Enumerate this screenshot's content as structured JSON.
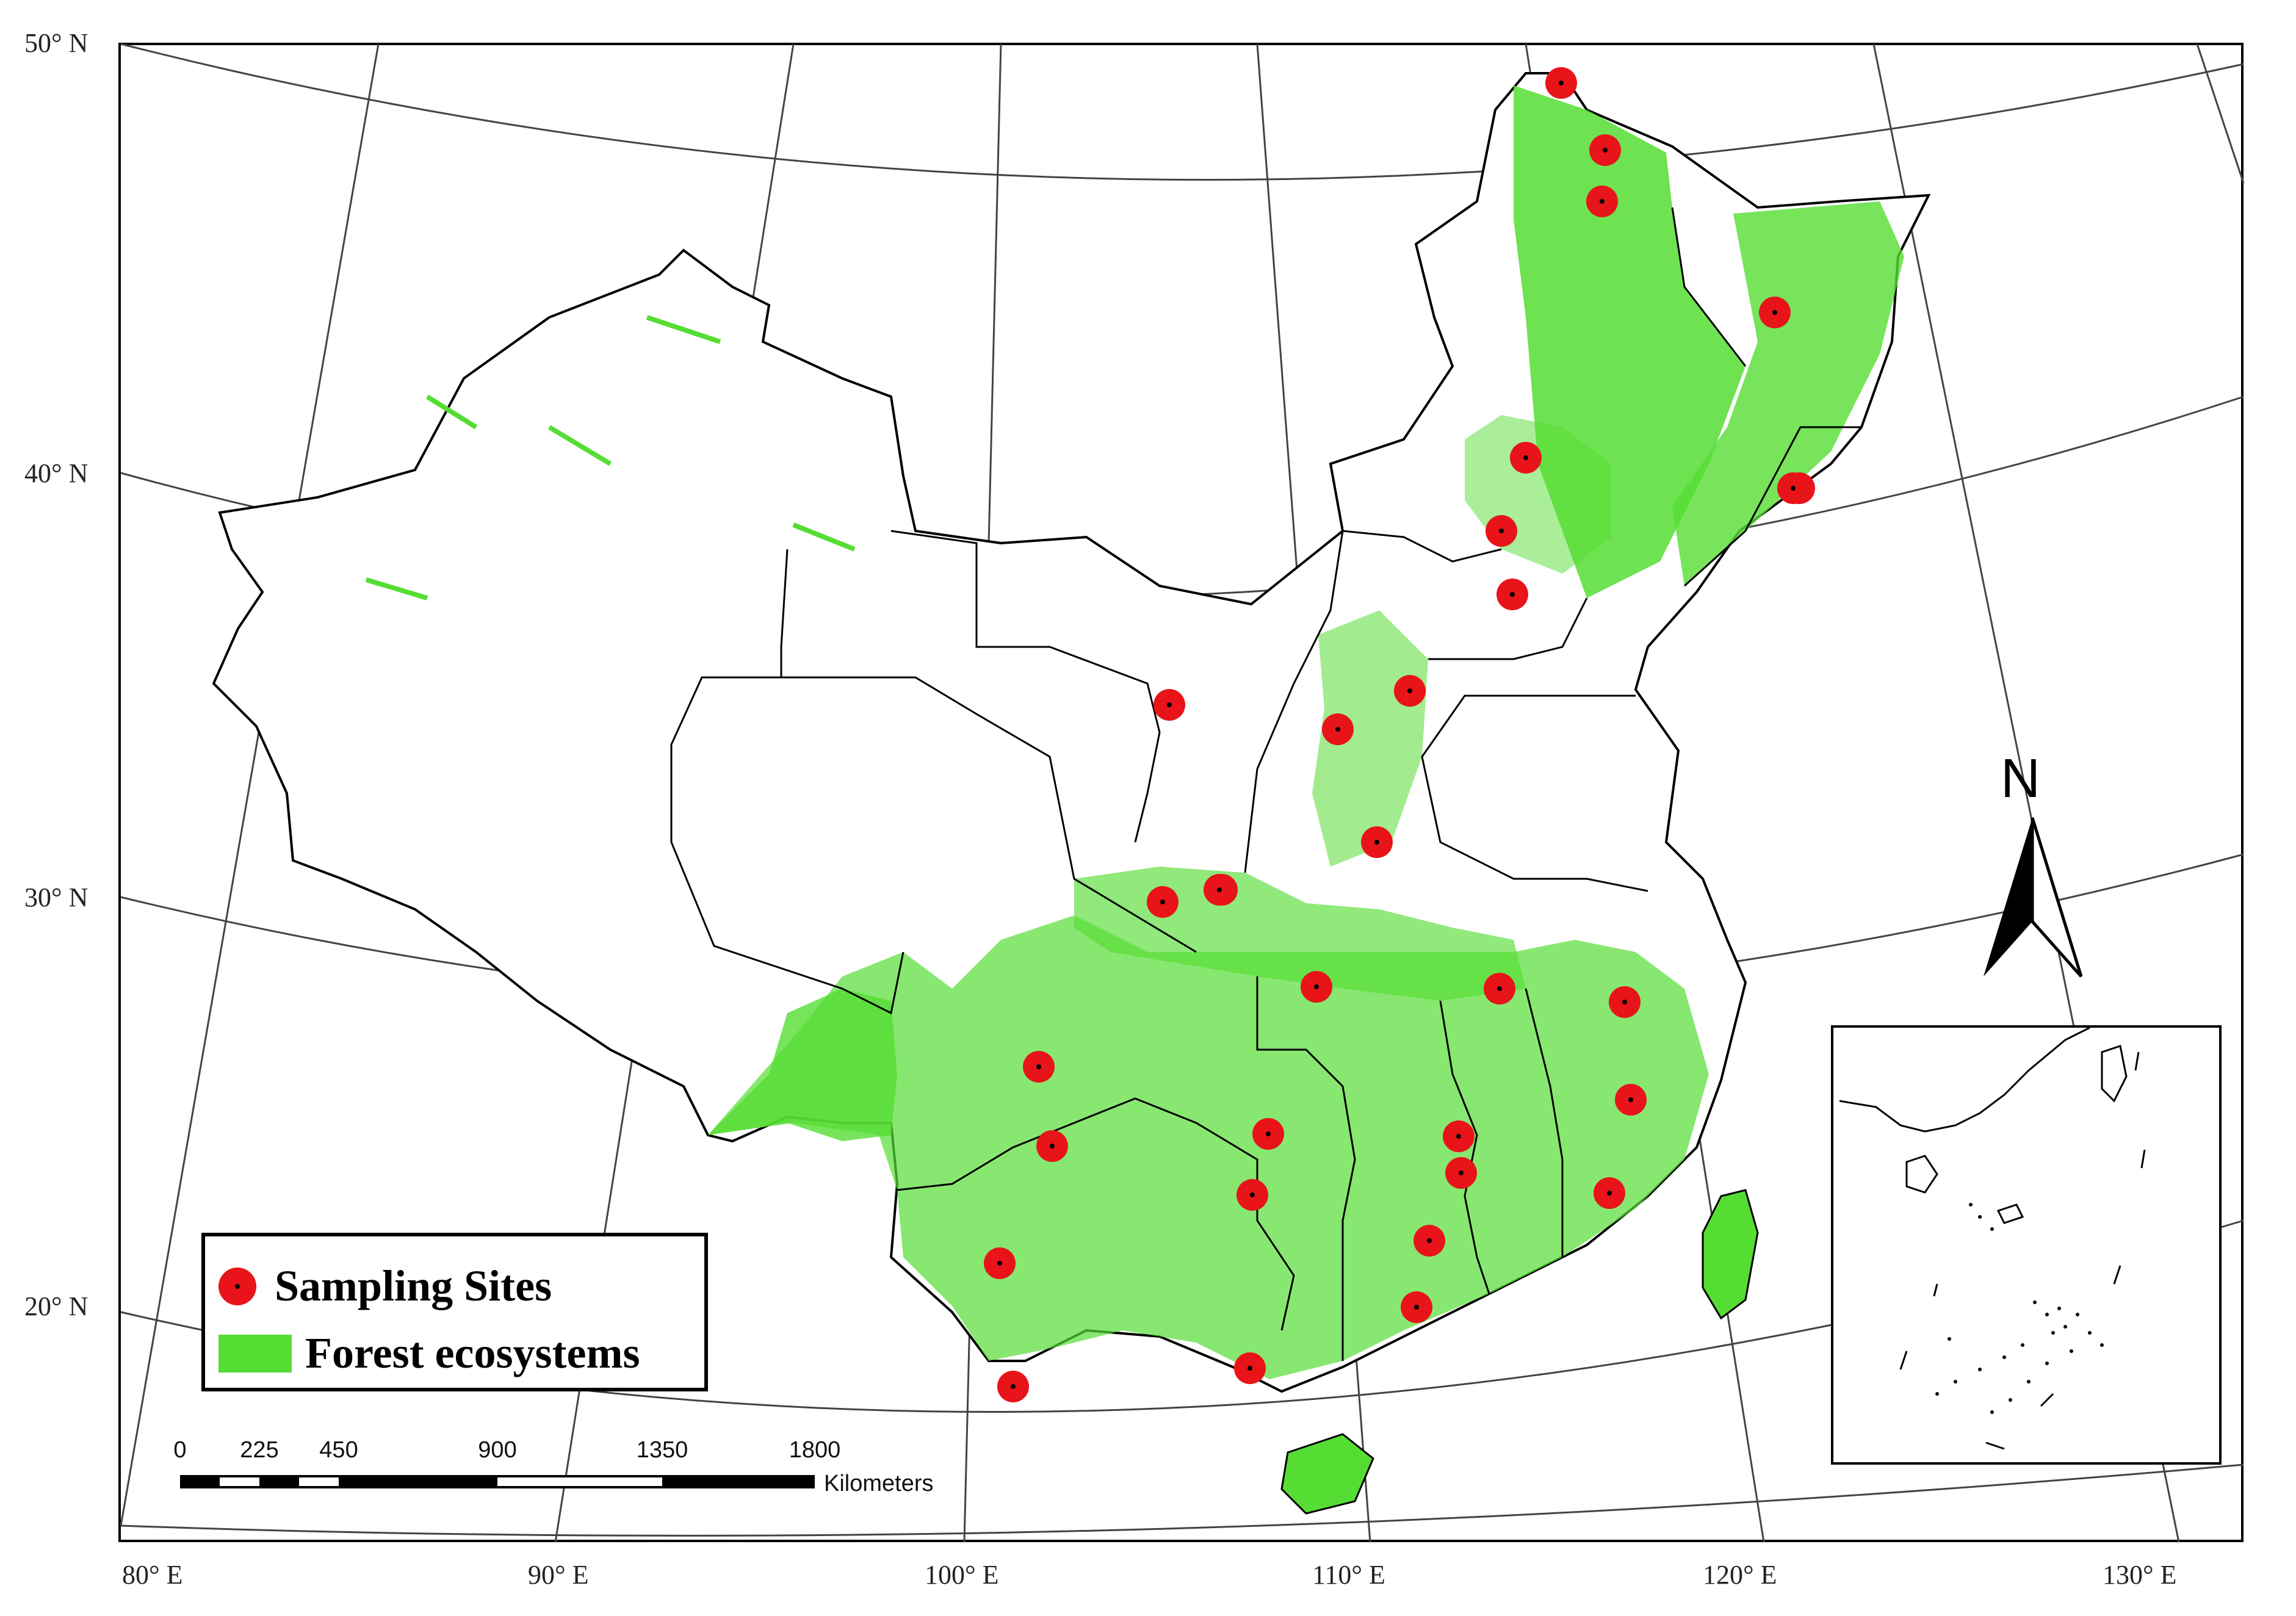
{
  "lat_labels": [
    "50° N",
    "40° N",
    "30° N",
    "20° N"
  ],
  "lon_labels": [
    "80° E",
    "90° E",
    "100° E",
    "110° E",
    "120° E",
    "130° E"
  ],
  "legend": {
    "sites_label": "Sampling Sites",
    "forest_label": "Forest ecosystems"
  },
  "scale": {
    "ticks": [
      "0",
      "225",
      "450",
      "900",
      "1350",
      "1800"
    ],
    "unit": "Kilometers"
  },
  "north_label": "N",
  "colors": {
    "forest": "#55dd33",
    "site": "#e8141a",
    "border": "#000000",
    "graticule": "#333333"
  }
}
